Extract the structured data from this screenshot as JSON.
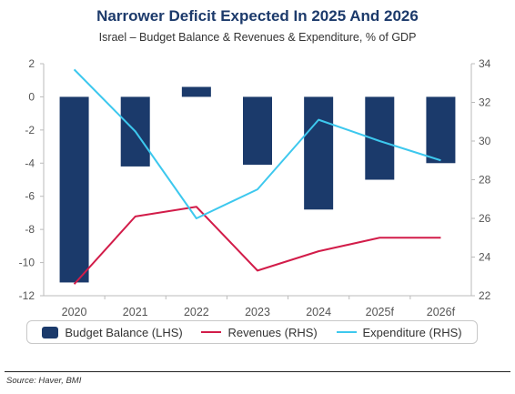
{
  "title": "Narrower Deficit Expected In 2025 And 2026",
  "subtitle": "Israel – Budget Balance & Revenues & Expenditure, % of GDP",
  "source": "Source: Haver, BMI",
  "colors": {
    "bar": "#1b3a6b",
    "revenues": "#d21c49",
    "expenditure": "#3dc8ee",
    "axis_text": "#555555"
  },
  "legend": [
    {
      "label": "Budget Balance (LHS)",
      "kind": "bar",
      "color": "#1b3a6b"
    },
    {
      "label": "Revenues (RHS)",
      "kind": "line",
      "color": "#d21c49"
    },
    {
      "label": "Expenditure (RHS)",
      "kind": "line",
      "color": "#3dc8ee"
    }
  ],
  "chart_data": {
    "type": "bar",
    "title": "Narrower Deficit Expected In 2025 And 2026",
    "subtitle": "Israel – Budget Balance & Revenues & Expenditure, % of GDP",
    "categories": [
      "2020",
      "2021",
      "2022",
      "2023",
      "2024",
      "2025f",
      "2026f"
    ],
    "ylim_left": [
      -12,
      2
    ],
    "yticks_left": [
      "2",
      "0",
      "-2",
      "-4",
      "-6",
      "-8",
      "-10",
      "-12"
    ],
    "ylim_right": [
      22,
      34
    ],
    "yticks_right": [
      "34",
      "32",
      "30",
      "28",
      "26",
      "24",
      "22"
    ],
    "grid": false,
    "legend_position": "bottom",
    "series": [
      {
        "name": "Budget Balance (LHS)",
        "type": "bar",
        "axis": "left",
        "color": "#1b3a6b",
        "values": [
          -11.2,
          -4.2,
          0.6,
          -4.1,
          -6.8,
          -5.0,
          -4.0
        ]
      },
      {
        "name": "Revenues (RHS)",
        "type": "line",
        "axis": "right",
        "color": "#d21c49",
        "values": [
          22.6,
          26.1,
          26.6,
          23.3,
          24.3,
          25.0,
          25.0
        ]
      },
      {
        "name": "Expenditure (RHS)",
        "type": "line",
        "axis": "right",
        "color": "#3dc8ee",
        "values": [
          33.7,
          30.5,
          26.0,
          27.5,
          31.1,
          30.0,
          29.0
        ]
      }
    ]
  }
}
